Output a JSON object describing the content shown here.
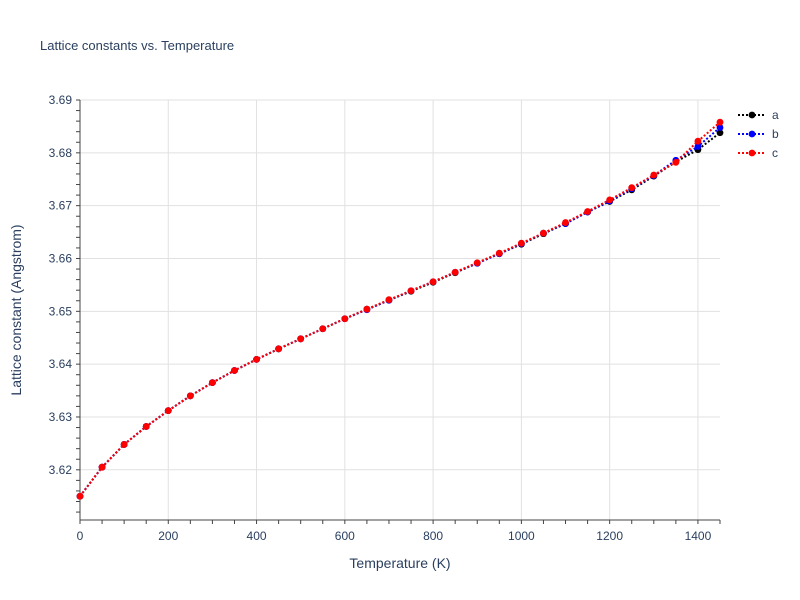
{
  "chart_data": {
    "type": "line",
    "title": "Lattice constants vs. Temperature",
    "xlabel": "Temperature (K)",
    "ylabel": "Lattice constant (Angstrom)",
    "xlim": [
      0,
      1450
    ],
    "ylim": [
      3.6105,
      3.69
    ],
    "x_ticks": [
      0,
      200,
      400,
      600,
      800,
      1000,
      1200,
      1400
    ],
    "y_ticks": [
      3.62,
      3.63,
      3.64,
      3.65,
      3.66,
      3.67,
      3.68,
      3.69
    ],
    "grid": true,
    "legend": "right",
    "x": [
      0,
      50,
      100,
      150,
      200,
      250,
      300,
      350,
      400,
      450,
      500,
      550,
      600,
      650,
      700,
      750,
      800,
      850,
      900,
      950,
      1000,
      1050,
      1100,
      1150,
      1200,
      1250,
      1300,
      1350,
      1400,
      1450
    ],
    "series": [
      {
        "name": "a",
        "color": "#000000",
        "values": [
          3.615,
          3.6205,
          3.6248,
          3.6282,
          3.6312,
          3.634,
          3.6365,
          3.6388,
          3.6409,
          3.6429,
          3.6448,
          3.6467,
          3.6486,
          3.6504,
          3.6521,
          3.6538,
          3.6555,
          3.6573,
          3.6591,
          3.6609,
          3.6627,
          3.6647,
          3.6666,
          3.6688,
          3.6708,
          3.673,
          3.6756,
          3.6783,
          3.6806,
          3.6838
        ]
      },
      {
        "name": "b",
        "color": "#0000ff",
        "values": [
          3.615,
          3.6205,
          3.6248,
          3.6282,
          3.6312,
          3.634,
          3.6365,
          3.6388,
          3.6409,
          3.6429,
          3.6448,
          3.6467,
          3.6486,
          3.6503,
          3.6521,
          3.6539,
          3.6556,
          3.6574,
          3.6591,
          3.6609,
          3.6628,
          3.6648,
          3.6666,
          3.6688,
          3.6709,
          3.6732,
          3.6757,
          3.6786,
          3.6812,
          3.6848
        ]
      },
      {
        "name": "c",
        "color": "#ff0000",
        "values": [
          3.615,
          3.6205,
          3.6248,
          3.6282,
          3.6312,
          3.634,
          3.6365,
          3.6388,
          3.6409,
          3.6429,
          3.6448,
          3.6467,
          3.6486,
          3.6504,
          3.6522,
          3.6539,
          3.6556,
          3.6574,
          3.6592,
          3.661,
          3.6629,
          3.6648,
          3.6668,
          3.6689,
          3.6711,
          3.6734,
          3.6758,
          3.6782,
          3.6822,
          3.6858
        ]
      }
    ]
  }
}
